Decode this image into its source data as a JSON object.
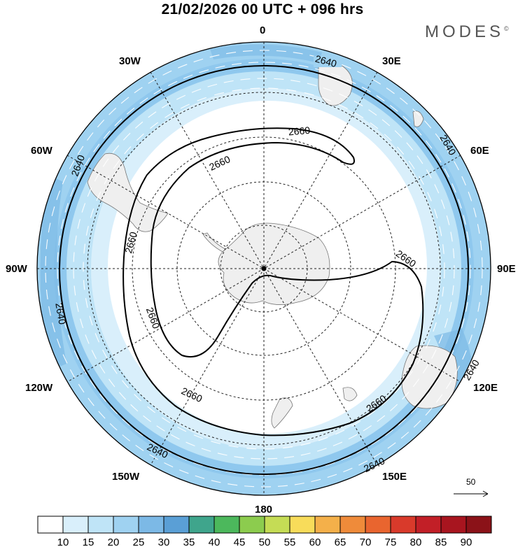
{
  "header": {
    "title": "21/02/2026  00 UTC  + 096 hrs",
    "brand": "MODES"
  },
  "longitude_labels": [
    "0",
    "30E",
    "60E",
    "90E",
    "120E",
    "150E",
    "180",
    "150W",
    "120W",
    "90W",
    "60W",
    "30W"
  ],
  "contours": {
    "outer_value": "2640",
    "inner_value": "2660"
  },
  "reference_vector": {
    "value": "50",
    "unit_label": "50"
  },
  "colorbar": {
    "ticks": [
      "10",
      "15",
      "20",
      "25",
      "30",
      "35",
      "40",
      "45",
      "50",
      "55",
      "60",
      "65",
      "70",
      "75",
      "80",
      "85",
      "90"
    ],
    "colors": [
      "#ffffff",
      "#d9effb",
      "#bfe4f7",
      "#9fd2f1",
      "#7cb9e6",
      "#5a9fd6",
      "#3fa58c",
      "#4cb85c",
      "#8ccc4e",
      "#c5dc55",
      "#f8dc5a",
      "#f4b04a",
      "#ef8b3a",
      "#e9652f",
      "#d93a2b",
      "#c21f27",
      "#a8151f",
      "#8b1218"
    ]
  },
  "palette": {
    "land": "#efefef",
    "coast": "#777777",
    "contour": "#000000",
    "arrow": "#ffffff"
  }
}
